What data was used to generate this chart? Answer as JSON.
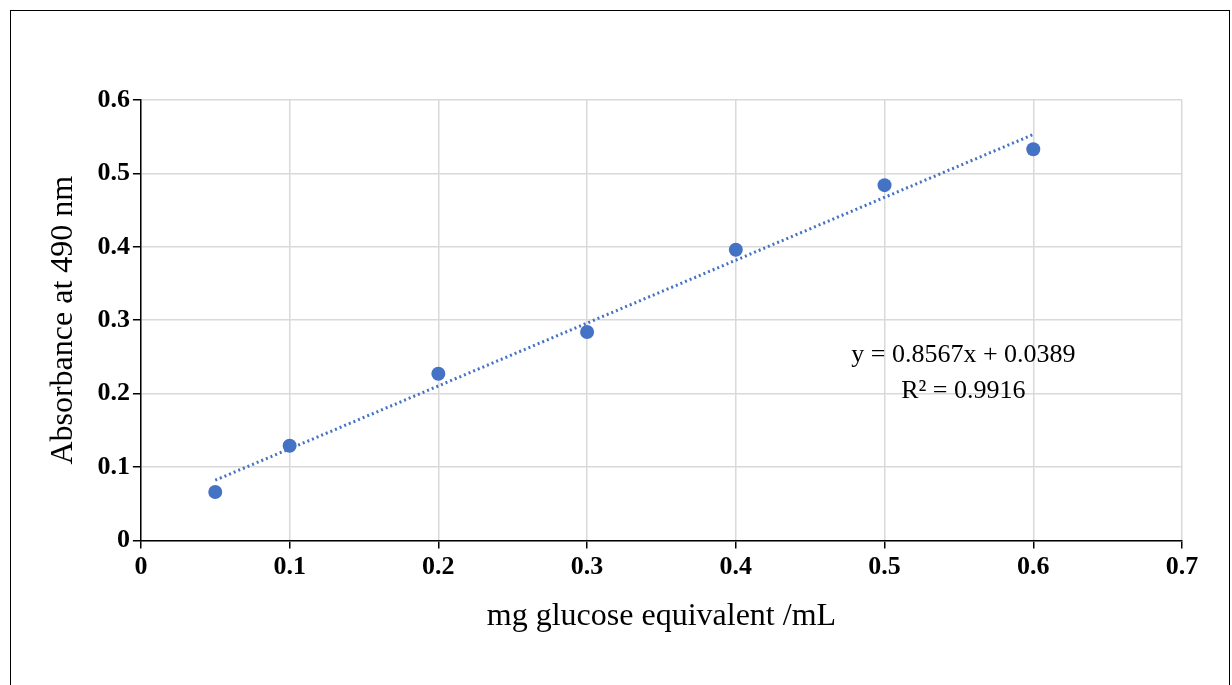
{
  "chart_data": {
    "type": "scatter",
    "xlabel": "mg glucose equivalent /mL",
    "ylabel": "Absorbance at 490 nm",
    "annotations": [
      "y = 0.8567x + 0.0389",
      "R² = 0.9916"
    ],
    "xlim": [
      0,
      0.7
    ],
    "xticks": [
      0,
      0.1,
      0.2,
      0.3,
      0.4,
      0.5,
      0.6,
      0.7
    ],
    "ylim": [
      0,
      0.6
    ],
    "yticks": [
      0,
      0.1,
      0.2,
      0.3,
      0.4,
      0.5,
      0.6
    ],
    "grid": true,
    "legend": false,
    "series": [
      {
        "type": "scatter",
        "color": "#4472c4",
        "marker": "circle",
        "x": [
          0.05,
          0.1,
          0.2,
          0.3,
          0.4,
          0.5,
          0.6
        ],
        "values": [
          0.066,
          0.129,
          0.227,
          0.284,
          0.396,
          0.484,
          0.533
        ]
      },
      {
        "type": "line",
        "color": "#4472c4",
        "marker": "none",
        "line_style": "dotted",
        "x": [
          0.05,
          0.6
        ],
        "values": [
          0.082,
          0.553
        ]
      }
    ]
  }
}
